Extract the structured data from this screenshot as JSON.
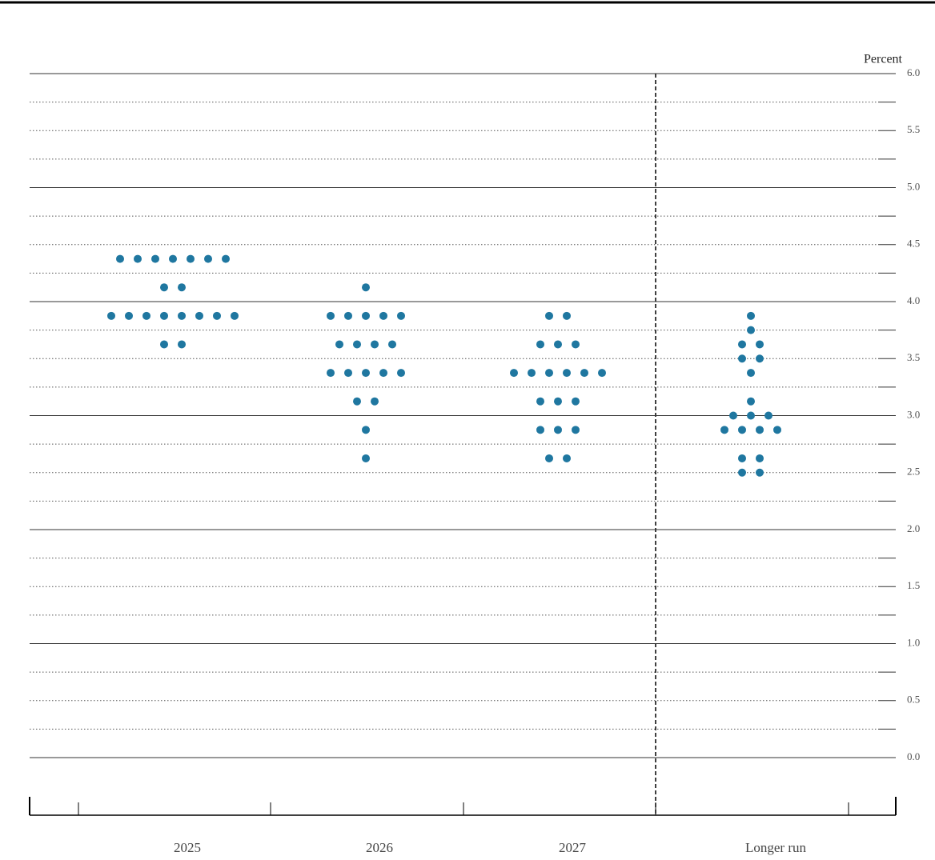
{
  "chart_data": {
    "type": "dot",
    "y_label": "Percent",
    "categories": [
      "2025",
      "2026",
      "2027",
      "Longer run"
    ],
    "color": "#1f77a0",
    "values": [
      [
        4.375,
        4.375,
        4.375,
        4.375,
        4.375,
        4.375,
        4.375,
        4.125,
        4.125,
        3.875,
        3.875,
        3.875,
        3.875,
        3.875,
        3.875,
        3.875,
        3.875,
        3.625,
        3.625
      ],
      [
        4.125,
        3.875,
        3.875,
        3.875,
        3.875,
        3.875,
        3.625,
        3.625,
        3.625,
        3.625,
        3.375,
        3.375,
        3.375,
        3.375,
        3.375,
        3.125,
        3.125,
        2.875,
        2.625
      ],
      [
        3.875,
        3.875,
        3.625,
        3.625,
        3.625,
        3.375,
        3.375,
        3.375,
        3.375,
        3.375,
        3.375,
        3.125,
        3.125,
        3.125,
        2.875,
        2.875,
        2.875,
        2.625,
        2.625
      ],
      [
        3.875,
        3.75,
        3.625,
        3.625,
        3.5,
        3.5,
        3.375,
        3.125,
        3,
        3,
        3,
        2.875,
        2.875,
        2.875,
        2.875,
        2.625,
        2.625,
        2.5,
        2.5
      ]
    ],
    "ylim": [
      0,
      6
    ],
    "yticks": [
      {
        "value": 0,
        "label": "0.0"
      },
      0.5,
      {
        "value": 1,
        "label": "1.0"
      },
      1.5,
      {
        "value": 2,
        "label": "2.0"
      },
      2.5,
      {
        "value": 3,
        "label": "3.0"
      },
      3.5,
      {
        "value": 4,
        "label": "4.0"
      },
      4.5,
      {
        "value": 5,
        "label": "5.0"
      },
      5.5,
      {
        "value": 6,
        "label": "6.0"
      }
    ],
    "minor_yticks": [
      0.25,
      0.75,
      1.25,
      1.75,
      2.25,
      2.75,
      3.25,
      3.75,
      4.25,
      4.75,
      5.25,
      5.75
    ],
    "grid": true
  }
}
